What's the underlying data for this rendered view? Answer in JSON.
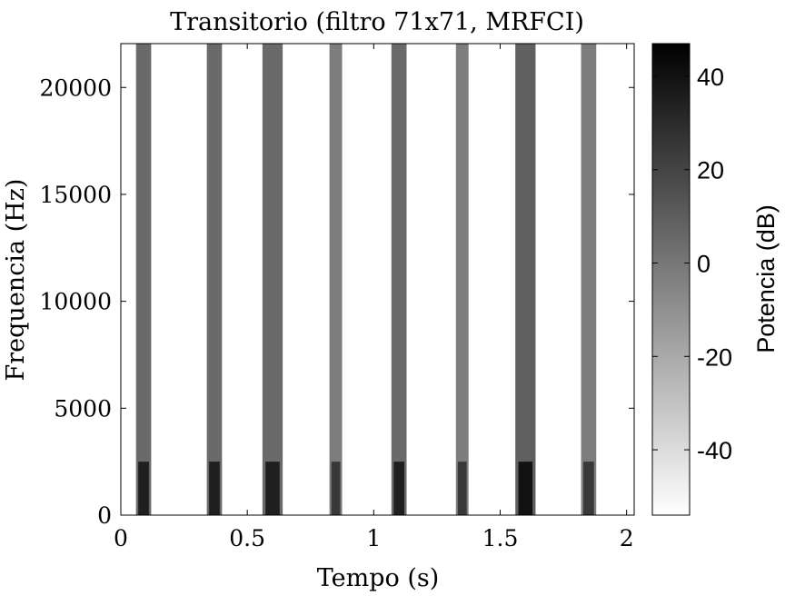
{
  "chart_data": {
    "type": "heatmap",
    "title": "Transitorio (filtro 71x71, MRFCI)",
    "xlabel": "Tempo (s)",
    "ylabel": "Frequencia (Hz)",
    "xlim": [
      0,
      2.03
    ],
    "ylim": [
      0,
      22050
    ],
    "xticks": [
      0,
      0.5,
      1,
      1.5,
      2
    ],
    "xtick_labels": [
      "0",
      "0.5",
      "1",
      "1.5",
      "2"
    ],
    "yticks": [
      0,
      5000,
      10000,
      15000,
      20000
    ],
    "ytick_labels": [
      "0",
      "5000",
      "10000",
      "15000",
      "20000"
    ],
    "colorbar": {
      "label": "Potencia (dB)",
      "range": [
        -54,
        47
      ],
      "ticks": [
        -40,
        -20,
        0,
        20,
        40
      ],
      "tick_labels": [
        "-40",
        "-20",
        "0",
        "20",
        "40"
      ],
      "colormap": "gray-reversed"
    },
    "transient_bands": [
      {
        "t": 0.09,
        "width": 0.06,
        "fmax": 22050,
        "level_db": 25
      },
      {
        "t": 0.37,
        "width": 0.06,
        "fmax": 22050,
        "level_db": 25
      },
      {
        "t": 0.6,
        "width": 0.08,
        "fmax": 22050,
        "level_db": 25
      },
      {
        "t": 0.85,
        "width": 0.05,
        "fmax": 22050,
        "level_db": 15
      },
      {
        "t": 1.1,
        "width": 0.06,
        "fmax": 22050,
        "level_db": 25
      },
      {
        "t": 1.35,
        "width": 0.05,
        "fmax": 22050,
        "level_db": 15
      },
      {
        "t": 1.6,
        "width": 0.08,
        "fmax": 22050,
        "level_db": 30
      },
      {
        "t": 1.85,
        "width": 0.06,
        "fmax": 22050,
        "level_db": 15
      }
    ]
  },
  "colors": {
    "background": "#ffffff",
    "axis": "#000000",
    "band_dark": "#3a3a3a"
  }
}
